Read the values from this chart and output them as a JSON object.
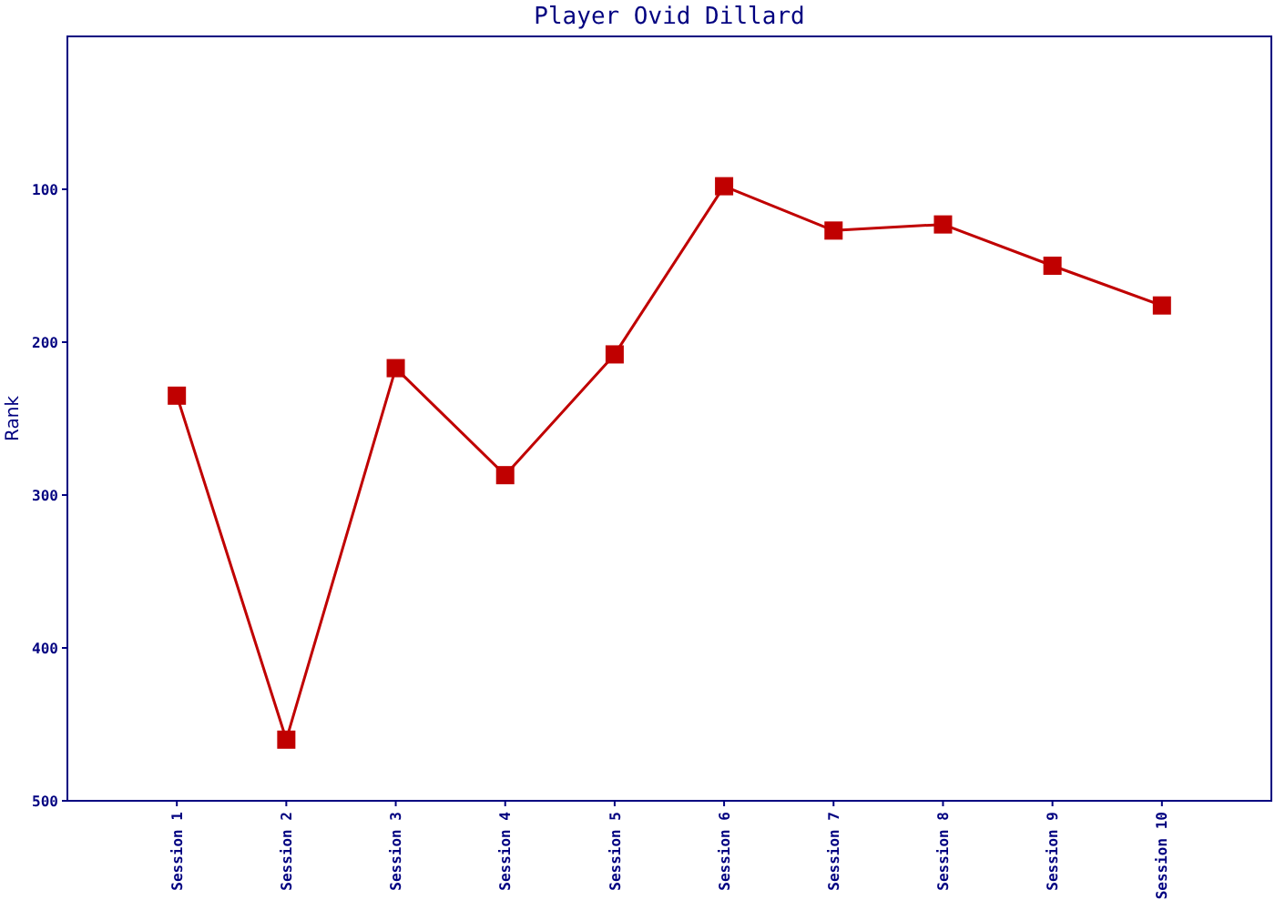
{
  "chart_data": {
    "type": "line",
    "title": "Player Ovid Dillard",
    "ylabel": "Rank",
    "categories": [
      "Session 1",
      "Session 2",
      "Session 3",
      "Session 4",
      "Session 5",
      "Session 6",
      "Session 7",
      "Session 8",
      "Session 9",
      "Session 10"
    ],
    "series": [
      {
        "color": "#c00000",
        "values": [
          235,
          460,
          217,
          287,
          208,
          98,
          127,
          123,
          150,
          176
        ]
      }
    ],
    "ylim": [
      500,
      0
    ],
    "yticks": [
      100,
      200,
      300,
      400,
      500
    ],
    "marker": "square",
    "line_style": "solid"
  }
}
